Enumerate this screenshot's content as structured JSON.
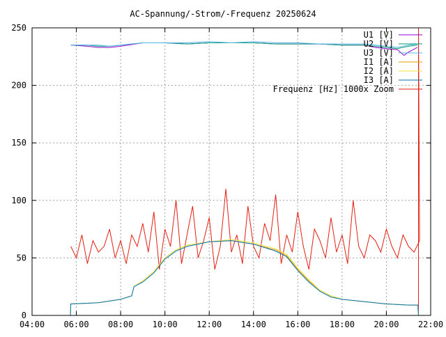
{
  "chart_data": {
    "type": "line",
    "title": "AC-Spannung/-Strom/-Frequenz 20250624",
    "xlabel": "",
    "ylabel": "",
    "xlim": [
      4,
      22
    ],
    "ylim": [
      0,
      250
    ],
    "x_ticks": [
      4,
      6,
      8,
      10,
      12,
      14,
      16,
      18,
      20,
      22
    ],
    "x_tick_labels": [
      "04:00",
      "06:00",
      "08:00",
      "10:00",
      "12:00",
      "14:00",
      "16:00",
      "18:00",
      "20:00",
      "22:00"
    ],
    "y_ticks": [
      0,
      50,
      100,
      150,
      200,
      250
    ],
    "y_tick_labels": [
      "0",
      "50",
      "100",
      "150",
      "200",
      "250"
    ],
    "grid": true,
    "legend_position": "top-right",
    "series": [
      {
        "name": "U1 [V]",
        "color": "#9400d3",
        "x": [
          5.75,
          6.5,
          7,
          7.5,
          8,
          9,
          10,
          11,
          12,
          13,
          14,
          15,
          16,
          17,
          18,
          19,
          19.5,
          20,
          20.5,
          20.8,
          21,
          21.2,
          21.4
        ],
        "y": [
          235,
          234,
          233,
          233,
          234,
          237,
          237,
          236,
          237,
          237,
          237,
          236,
          236,
          236,
          235,
          235,
          233,
          232,
          231,
          226,
          229,
          231,
          233
        ]
      },
      {
        "name": "U2 [V]",
        "color": "#009e73",
        "x": [
          5.75,
          6.5,
          7,
          7.5,
          8,
          9,
          10,
          11,
          12,
          13,
          14,
          15,
          16,
          17,
          18,
          19,
          19.5,
          20,
          20.5,
          21,
          21.4
        ],
        "y": [
          235,
          235,
          234,
          234,
          235,
          237,
          237,
          236,
          237,
          237,
          237,
          236,
          236,
          236,
          235,
          235,
          234,
          233,
          232,
          234,
          235
        ]
      },
      {
        "name": "U3 [V]",
        "color": "#56b4e9",
        "x": [
          5.75,
          6.5,
          7,
          7.5,
          8,
          9,
          10,
          11,
          12,
          13,
          14,
          15,
          16,
          17,
          18,
          19,
          19.5,
          20,
          20.5,
          21,
          21.4
        ],
        "y": [
          235,
          235,
          235,
          234,
          235,
          237,
          237,
          237,
          238,
          237,
          238,
          237,
          237,
          236,
          236,
          236,
          235,
          234,
          233,
          235,
          236
        ]
      },
      {
        "name": "I1 [A]",
        "color": "#e69f00",
        "x": [
          5.73,
          5.75,
          7,
          8,
          8.5,
          8.6,
          9,
          9.5,
          10,
          10.5,
          11,
          12,
          13,
          14,
          15,
          15.5,
          16,
          16.5,
          17,
          17.5,
          18,
          19,
          20,
          21,
          21.42,
          21.45
        ],
        "y": [
          0,
          10,
          11,
          14,
          17,
          25,
          30,
          38,
          50,
          57,
          61,
          64,
          65,
          62,
          57,
          52,
          40,
          30,
          22,
          17,
          14,
          12,
          10,
          9,
          9,
          0
        ]
      },
      {
        "name": "I2 [A]",
        "color": "#f0e442",
        "x": [
          5.73,
          5.75,
          7,
          8,
          8.5,
          8.6,
          9,
          9.5,
          10,
          10.5,
          11,
          12,
          13,
          14,
          15,
          15.5,
          16,
          16.5,
          17,
          17.5,
          18,
          19,
          20,
          21,
          21.42,
          21.45
        ],
        "y": [
          0,
          10,
          11,
          14,
          17,
          25,
          30,
          38,
          50,
          57,
          61,
          64,
          66,
          63,
          58,
          53,
          41,
          31,
          22,
          17,
          14,
          12,
          10,
          9,
          9,
          0
        ]
      },
      {
        "name": "I3 [A]",
        "color": "#0072b2",
        "x": [
          5.73,
          5.75,
          7,
          8,
          8.5,
          8.6,
          9,
          9.5,
          10,
          10.5,
          11,
          12,
          13,
          14,
          15,
          15.5,
          16,
          16.5,
          17,
          17.5,
          18,
          19,
          20,
          21,
          21.42,
          21.45
        ],
        "y": [
          0,
          10,
          11,
          14,
          17,
          25,
          29,
          37,
          49,
          56,
          60,
          64,
          65,
          62,
          56,
          51,
          39,
          29,
          21,
          16,
          14,
          12,
          10,
          9,
          9,
          0
        ]
      },
      {
        "name": "Frequenz [Hz] 1000x Zoom",
        "color": "#e51e10",
        "x_start": 5.75,
        "x_step": 0.25,
        "y": [
          60,
          50,
          70,
          45,
          65,
          55,
          60,
          75,
          50,
          65,
          45,
          70,
          60,
          80,
          55,
          90,
          40,
          75,
          60,
          100,
          45,
          70,
          95,
          50,
          65,
          85,
          40,
          60,
          110,
          55,
          70,
          45,
          95,
          60,
          50,
          80,
          65,
          105,
          45,
          70,
          55,
          90,
          60,
          40,
          75,
          65,
          50,
          85,
          55,
          70,
          45,
          100,
          60,
          50,
          70,
          65,
          55,
          75,
          60,
          50,
          70,
          60,
          55,
          65
        ],
        "spike_x": 21.45,
        "spike_y": 250
      }
    ]
  }
}
